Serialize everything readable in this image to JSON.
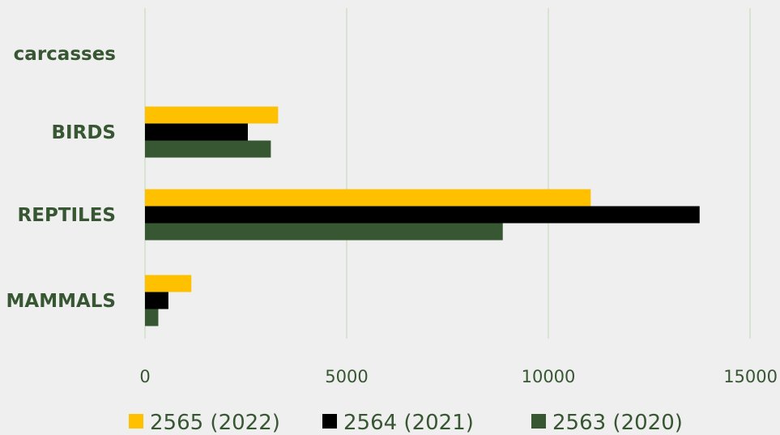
{
  "chart_data": {
    "type": "bar",
    "orientation": "horizontal",
    "categories": [
      "carcasses",
      "BIRDS",
      "REPTILES",
      "MAMMALS"
    ],
    "series": [
      {
        "name": "2565 (2022)",
        "values": [
          0,
          3300,
          11050,
          1150
        ],
        "color": "#ffc000"
      },
      {
        "name": "2564 (2021)",
        "values": [
          0,
          2550,
          13750,
          580
        ],
        "color": "#000000"
      },
      {
        "name": "2563 (2020)",
        "values": [
          0,
          3120,
          8870,
          330
        ],
        "color": "#375632"
      }
    ],
    "x_ticks": [
      "0",
      "5000",
      "10000",
      "15000"
    ],
    "xlim": [
      0,
      15000
    ],
    "grid": true,
    "legend_position": "bottom",
    "label_color": "#375632",
    "grid_color": "#cfe0c8"
  }
}
